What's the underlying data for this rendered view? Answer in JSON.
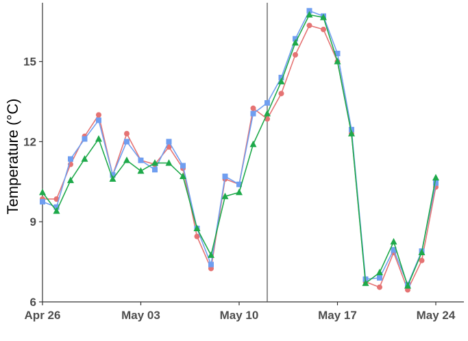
{
  "chart_data": {
    "type": "line",
    "title": "",
    "xlabel": "",
    "ylabel": "Temperature (°C)",
    "x_ticks": [
      "Apr 26",
      "May 03",
      "May 10",
      "May 17",
      "May 24"
    ],
    "y_ticks": [
      "6",
      "9",
      "12",
      "15"
    ],
    "ylim": [
      6,
      17.2
    ],
    "xlim": [
      "2021-04-26",
      "2021-05-26"
    ],
    "grid": false,
    "legend": "none",
    "vline": "2021-05-12",
    "dates": [
      "2021-04-26",
      "2021-04-27",
      "2021-04-28",
      "2021-04-29",
      "2021-04-30",
      "2021-05-01",
      "2021-05-02",
      "2021-05-03",
      "2021-05-04",
      "2021-05-05",
      "2021-05-06",
      "2021-05-07",
      "2021-05-08",
      "2021-05-09",
      "2021-05-10",
      "2021-05-11",
      "2021-05-12",
      "2021-05-13",
      "2021-05-14",
      "2021-05-15",
      "2021-05-16",
      "2021-05-17",
      "2021-05-18",
      "2021-05-19",
      "2021-05-20",
      "2021-05-21",
      "2021-05-22",
      "2021-05-23",
      "2021-05-24",
      "2021-05-25"
    ],
    "series": [
      {
        "color": "#e57373",
        "marker": "circle",
        "values": [
          9.85,
          9.85,
          11.15,
          12.2,
          13.0,
          10.75,
          12.3,
          11.3,
          11.15,
          11.8,
          11.0,
          8.45,
          7.25,
          10.6,
          10.4,
          13.25,
          12.85,
          13.8,
          15.25,
          16.35,
          16.2,
          15.0,
          12.3,
          6.75,
          6.55,
          7.85,
          6.45,
          7.55,
          10.3,
          null
        ]
      },
      {
        "color": "#6f9ef0",
        "marker": "square",
        "values": [
          9.75,
          9.55,
          11.35,
          12.1,
          12.8,
          10.75,
          12.0,
          11.3,
          10.95,
          12.0,
          11.1,
          8.75,
          7.4,
          10.7,
          10.4,
          13.05,
          13.45,
          14.4,
          15.85,
          16.9,
          16.7,
          15.3,
          12.45,
          6.85,
          6.9,
          7.95,
          6.65,
          7.9,
          10.45,
          null
        ]
      },
      {
        "color": "#1ea94a",
        "marker": "triangle",
        "values": [
          10.1,
          9.4,
          10.55,
          11.35,
          12.1,
          10.6,
          11.3,
          10.9,
          11.2,
          11.2,
          10.7,
          8.75,
          7.75,
          9.95,
          10.1,
          11.9,
          13.05,
          14.25,
          15.7,
          16.75,
          16.65,
          15.0,
          12.3,
          6.7,
          7.1,
          8.25,
          6.6,
          7.85,
          10.65,
          null
        ]
      }
    ]
  }
}
